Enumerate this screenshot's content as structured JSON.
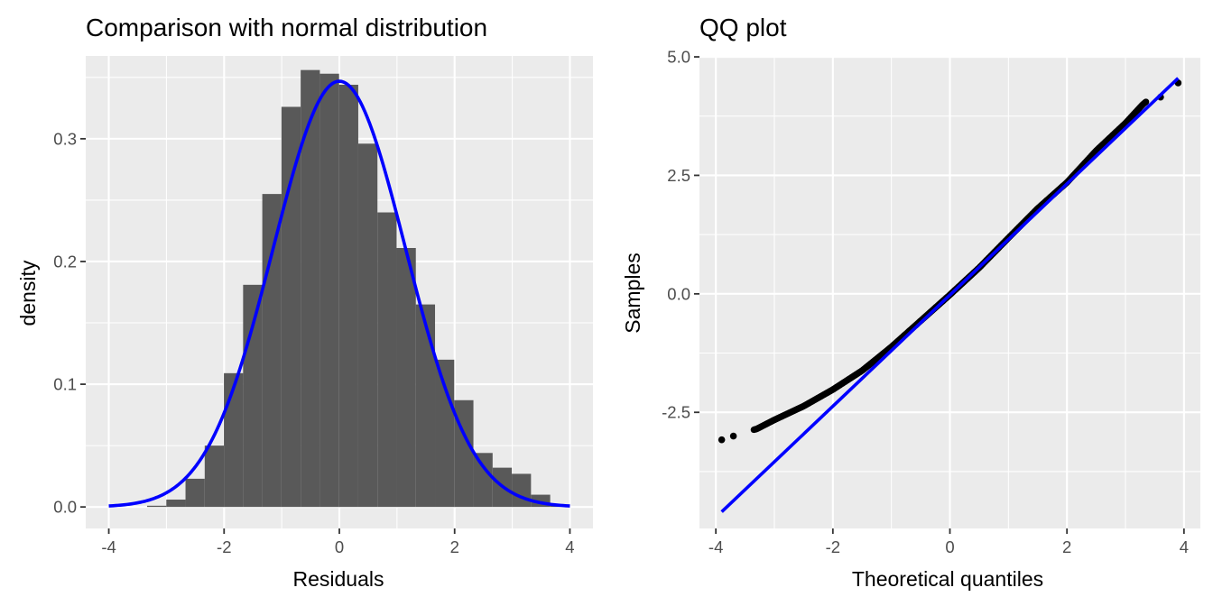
{
  "chart_data": [
    {
      "type": "bar",
      "title": "Comparison with normal distribution",
      "xlabel": "Residuals",
      "ylabel": "density",
      "xlim": [
        -4.4,
        4.4
      ],
      "ylim": [
        -0.0175,
        0.3675
      ],
      "x_ticks": [
        -4,
        -2,
        0,
        2,
        4
      ],
      "x_tick_labels": [
        "-4",
        "-2",
        "0",
        "2",
        "4"
      ],
      "y_ticks": [
        0.0,
        0.1,
        0.2,
        0.3
      ],
      "y_tick_labels": [
        "0.0",
        "0.1",
        "0.2",
        "0.3"
      ],
      "grid": true,
      "bin_width": 0.333,
      "bars": [
        {
          "x0": -3.335,
          "x1": -3.002,
          "value": 0.001
        },
        {
          "x0": -3.002,
          "x1": -2.669,
          "value": 0.006
        },
        {
          "x0": -2.669,
          "x1": -2.336,
          "value": 0.023
        },
        {
          "x0": -2.336,
          "x1": -2.003,
          "value": 0.05
        },
        {
          "x0": -2.003,
          "x1": -1.67,
          "value": 0.109
        },
        {
          "x0": -1.67,
          "x1": -1.337,
          "value": 0.181
        },
        {
          "x0": -1.337,
          "x1": -1.004,
          "value": 0.255
        },
        {
          "x0": -1.004,
          "x1": -0.671,
          "value": 0.326
        },
        {
          "x0": -0.671,
          "x1": -0.338,
          "value": 0.356
        },
        {
          "x0": -0.338,
          "x1": -0.005,
          "value": 0.353
        },
        {
          "x0": -0.005,
          "x1": 0.328,
          "value": 0.344
        },
        {
          "x0": 0.328,
          "x1": 0.661,
          "value": 0.296
        },
        {
          "x0": 0.661,
          "x1": 0.994,
          "value": 0.24
        },
        {
          "x0": 0.994,
          "x1": 1.327,
          "value": 0.211
        },
        {
          "x0": 1.327,
          "x1": 1.66,
          "value": 0.165
        },
        {
          "x0": 1.66,
          "x1": 1.993,
          "value": 0.12
        },
        {
          "x0": 1.993,
          "x1": 2.326,
          "value": 0.087
        },
        {
          "x0": 2.326,
          "x1": 2.659,
          "value": 0.044
        },
        {
          "x0": 2.659,
          "x1": 2.992,
          "value": 0.032
        },
        {
          "x0": 2.992,
          "x1": 3.325,
          "value": 0.027
        },
        {
          "x0": 3.325,
          "x1": 3.658,
          "value": 0.01
        },
        {
          "x0": 3.658,
          "x1": 3.991,
          "value": 0.001
        }
      ],
      "normal_curve": {
        "mean": 0.0,
        "sd": 1.15,
        "x_range": [
          -4,
          4
        ],
        "color": "#0000FF"
      },
      "colors": {
        "bar": "#595959",
        "curve": "#0000FF",
        "panel": "#EBEBEB"
      }
    },
    {
      "type": "scatter",
      "title": "QQ plot",
      "xlabel": "Theoretical quantiles",
      "ylabel": "Samples",
      "xlim": [
        -4.28,
        4.28
      ],
      "ylim": [
        -4.95,
        5.02
      ],
      "x_ticks": [
        -2,
        0,
        2,
        4
      ],
      "x_tick_labels": [
        "-2",
        "0",
        "2",
        "4"
      ],
      "x_ticks_extra": [
        -4
      ],
      "x_tick_labels_extra": [
        "-4"
      ],
      "y_ticks": [
        -2.5,
        0.0,
        2.5,
        5.0
      ],
      "y_tick_labels": [
        "-2.5",
        "0.0",
        "2.5",
        "5.0"
      ],
      "grid": true,
      "points_curve": [
        [
          -3.9,
          -3.08
        ],
        [
          -3.7,
          -3.0
        ],
        [
          -3.6,
          -2.95
        ],
        [
          -3.5,
          -2.92
        ],
        [
          -3.3,
          -2.85
        ],
        [
          -3.0,
          -2.66
        ],
        [
          -2.5,
          -2.37
        ],
        [
          -2.0,
          -2.02
        ],
        [
          -1.5,
          -1.62
        ],
        [
          -1.0,
          -1.12
        ],
        [
          -0.5,
          -0.57
        ],
        [
          0.0,
          -0.02
        ],
        [
          0.5,
          0.55
        ],
        [
          1.0,
          1.18
        ],
        [
          1.5,
          1.8
        ],
        [
          2.0,
          2.35
        ],
        [
          2.5,
          3.02
        ],
        [
          3.0,
          3.6
        ],
        [
          3.3,
          4.0
        ],
        [
          3.4,
          4.1
        ],
        [
          3.6,
          4.15
        ],
        [
          3.9,
          4.45
        ]
      ],
      "points_isolated": [
        [
          -3.9,
          -3.08
        ],
        [
          -3.7,
          -3.0
        ],
        [
          3.6,
          4.15
        ],
        [
          3.9,
          4.45
        ]
      ],
      "reference_line": {
        "x": [
          -3.9,
          3.9
        ],
        "y": [
          -4.6,
          4.55
        ],
        "color": "#0000FF"
      },
      "colors": {
        "points": "#000000",
        "line": "#0000FF",
        "panel": "#EBEBEB"
      }
    }
  ]
}
